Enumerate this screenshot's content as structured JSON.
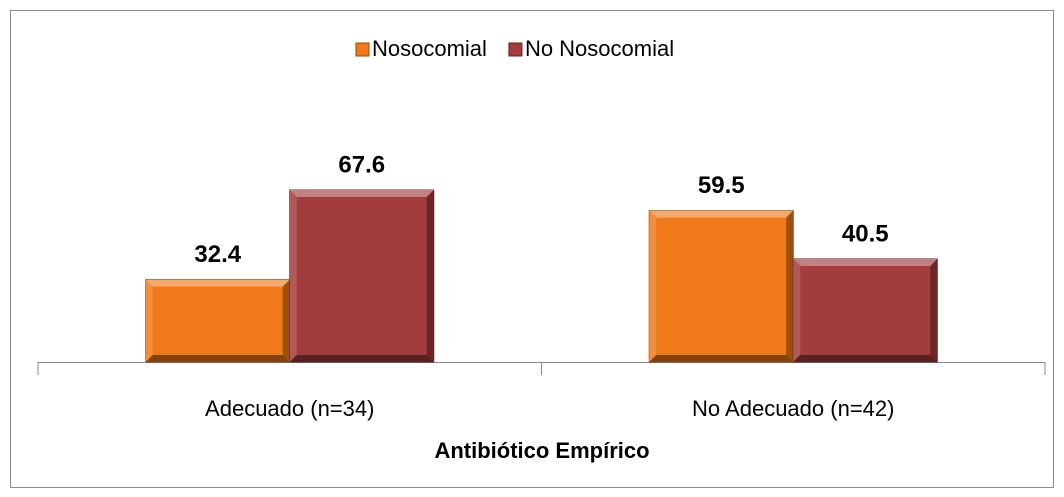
{
  "chart_data": {
    "type": "bar",
    "xlabel": "Antibiótico Empírico",
    "categories": [
      "Adecuado (n=34)",
      "No Adecuado (n=42)"
    ],
    "series": [
      {
        "name": "Nosocomial",
        "color": "#f07a1a",
        "values": [
          32.4,
          59.5
        ]
      },
      {
        "name": "No Nosocomial",
        "color": "#a33c3c",
        "values": [
          67.6,
          40.5
        ]
      }
    ],
    "ylim": [
      0,
      80
    ],
    "legend": "top"
  }
}
